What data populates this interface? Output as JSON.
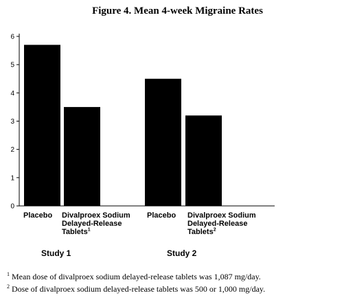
{
  "chart_data": {
    "type": "bar",
    "title": "Figure 4. Mean 4-week Migraine Rates",
    "ylim": [
      0,
      6
    ],
    "yticks": [
      "0",
      "1",
      "2",
      "3",
      "4",
      "5",
      "6"
    ],
    "grid": false,
    "bar_color": "#000000",
    "groups": [
      {
        "name": "Study 1",
        "bars": [
          {
            "label_lines": [
              "Placebo"
            ],
            "footnote_mark": "",
            "value": 5.7
          },
          {
            "label_lines": [
              "Divalproex Sodium",
              "Delayed-Release",
              "Tablets"
            ],
            "footnote_mark": "1",
            "value": 3.5
          }
        ]
      },
      {
        "name": "Study 2",
        "bars": [
          {
            "label_lines": [
              "Placebo"
            ],
            "footnote_mark": "",
            "value": 4.5
          },
          {
            "label_lines": [
              "Divalproex Sodium",
              "Delayed-Release",
              "Tablets"
            ],
            "footnote_mark": "2",
            "value": 3.2
          }
        ]
      }
    ]
  },
  "footnotes": [
    {
      "mark": "1",
      "text": "Mean dose of divalproex sodium delayed-release tablets was 1,087 mg/day."
    },
    {
      "mark": "2",
      "text": "Dose of divalproex sodium delayed-release tablets was 500 or 1,000 mg/day."
    }
  ]
}
